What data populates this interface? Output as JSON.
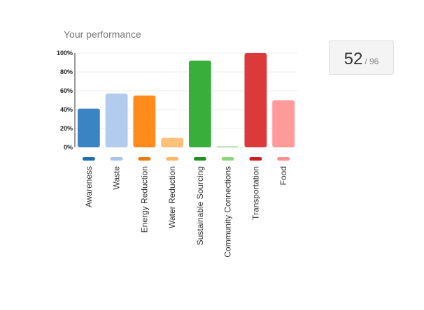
{
  "panel": {
    "title": "Your performance"
  },
  "score": {
    "value": "52",
    "separator": "/ 96"
  },
  "chart_data": {
    "type": "bar",
    "categories": [
      "Awareness",
      "Waste",
      "Energy Reduction",
      "Water Reduction",
      "Sustainable Sourcing",
      "Community Connections",
      "Transportation",
      "Food"
    ],
    "values": [
      41,
      57,
      55,
      10,
      92,
      1,
      100,
      50
    ],
    "colors": [
      "#3a84c4",
      "#b3cbec",
      "#ff8c1a",
      "#ffc07a",
      "#3aae3a",
      "#8ed67e",
      "#dc3a3a",
      "#ff9a9a"
    ],
    "marker_colors": [
      "#1f6fb0",
      "#a9c4ea",
      "#f07a10",
      "#ffb86a",
      "#239023",
      "#8ed67e",
      "#cc2020",
      "#ff8f8f"
    ],
    "ylim": [
      0,
      100
    ],
    "yticks": [
      "0%",
      "20%",
      "40%",
      "60%",
      "80%",
      "100%"
    ],
    "title": "",
    "xlabel": "",
    "ylabel": ""
  }
}
